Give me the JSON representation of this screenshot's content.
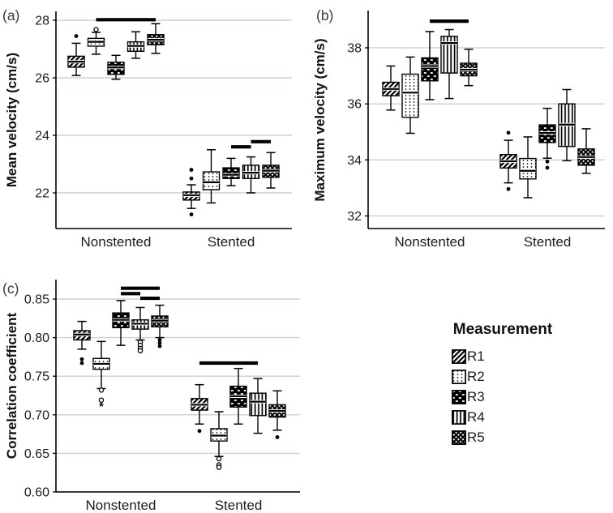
{
  "colors": {
    "gridline": "#c7d2d4",
    "axis": "#000000",
    "ink": "#000000",
    "background": "#ffffff",
    "significance_bar": "#000000"
  },
  "legend": {
    "title": "Measurement",
    "items": [
      {
        "label": "R1",
        "pattern": "diagonal-hatch"
      },
      {
        "label": "R2",
        "pattern": "dots"
      },
      {
        "label": "R3",
        "pattern": "dense-checker"
      },
      {
        "label": "R4",
        "pattern": "vertical-lines"
      },
      {
        "label": "R5",
        "pattern": "crosshatch"
      }
    ]
  },
  "chart_data": [
    {
      "id": "a",
      "type": "box",
      "panel_label": "(a)",
      "ylabel": "Mean velocity (cm/s)",
      "ylim": [
        20.76,
        28.31
      ],
      "yticks": [
        22,
        24,
        26,
        28
      ],
      "tick_decimals": 0,
      "grid": true,
      "categories": [
        "Nonstented",
        "Stented"
      ],
      "series": [
        "R1",
        "R2",
        "R3",
        "R4",
        "R5"
      ],
      "groups": [
        {
          "category": "Nonstented",
          "boxes": [
            {
              "series": "R1",
              "whisker_low": 26.08,
              "q1": 26.37,
              "median": 26.56,
              "q3": 26.75,
              "whisker_high": 27.2,
              "outliers": [
                {
                  "value": 27.45,
                  "marker": "dot"
                }
              ]
            },
            {
              "series": "R2",
              "whisker_low": 26.82,
              "q1": 27.1,
              "median": 27.25,
              "q3": 27.37,
              "whisker_high": 27.58,
              "outliers": [
                {
                  "value": 27.68,
                  "marker": "circle"
                }
              ]
            },
            {
              "series": "R3",
              "whisker_low": 25.95,
              "q1": 26.12,
              "median": 26.36,
              "q3": 26.54,
              "whisker_high": 26.78,
              "outliers": []
            },
            {
              "series": "R4",
              "whisker_low": 26.68,
              "q1": 26.92,
              "median": 27.11,
              "q3": 27.25,
              "whisker_high": 27.6,
              "outliers": []
            },
            {
              "series": "R5",
              "whisker_low": 26.85,
              "q1": 27.15,
              "median": 27.32,
              "q3": 27.5,
              "whisker_high": 27.88,
              "outliers": []
            }
          ]
        },
        {
          "category": "Stented",
          "boxes": [
            {
              "series": "R1",
              "whisker_low": 21.46,
              "q1": 21.75,
              "median": 21.92,
              "q3": 22.03,
              "whisker_high": 22.28,
              "outliers": [
                {
                  "value": 22.8,
                  "marker": "dot"
                },
                {
                  "value": 22.5,
                  "marker": "dot"
                },
                {
                  "value": 21.25,
                  "marker": "dot"
                }
              ]
            },
            {
              "series": "R2",
              "whisker_low": 21.65,
              "q1": 22.11,
              "median": 22.37,
              "q3": 22.73,
              "whisker_high": 23.5,
              "outliers": []
            },
            {
              "series": "R3",
              "whisker_low": 22.25,
              "q1": 22.5,
              "median": 22.63,
              "q3": 22.87,
              "whisker_high": 23.2,
              "outliers": []
            },
            {
              "series": "R4",
              "whisker_low": 22.0,
              "q1": 22.5,
              "median": 22.7,
              "q3": 22.96,
              "whisker_high": 23.25,
              "outliers": []
            },
            {
              "series": "R5",
              "whisker_low": 22.17,
              "q1": 22.54,
              "median": 22.77,
              "q3": 22.96,
              "whisker_high": 23.4,
              "outliers": []
            }
          ]
        }
      ],
      "significance_bars": [
        {
          "category": "Nonstented",
          "from_series": "R2",
          "to_series": "R5",
          "y": 28.02
        },
        {
          "category": "Stented",
          "from_series": "R3",
          "to_series": "R4",
          "y": 23.6
        },
        {
          "category": "Stented",
          "from_series": "R4",
          "to_series": "R5",
          "y": 23.78
        }
      ]
    },
    {
      "id": "b",
      "type": "box",
      "panel_label": "(b)",
      "ylabel": "Maximum velocity (cm/s)",
      "ylim": [
        31.55,
        39.33
      ],
      "yticks": [
        32,
        34,
        36,
        38
      ],
      "tick_decimals": 0,
      "grid": true,
      "categories": [
        "Nonstented",
        "Stented"
      ],
      "series": [
        "R1",
        "R2",
        "R3",
        "R4",
        "R5"
      ],
      "groups": [
        {
          "category": "Nonstented",
          "boxes": [
            {
              "series": "R1",
              "whisker_low": 35.78,
              "q1": 36.29,
              "median": 36.53,
              "q3": 36.77,
              "whisker_high": 37.35,
              "outliers": []
            },
            {
              "series": "R2",
              "whisker_low": 34.95,
              "q1": 35.52,
              "median": 36.4,
              "q3": 37.06,
              "whisker_high": 37.67,
              "outliers": []
            },
            {
              "series": "R3",
              "whisker_low": 36.15,
              "q1": 36.82,
              "median": 37.35,
              "q3": 37.64,
              "whisker_high": 38.58,
              "outliers": []
            },
            {
              "series": "R4",
              "whisker_low": 36.19,
              "q1": 37.1,
              "median": 38.17,
              "q3": 38.41,
              "whisker_high": 38.65,
              "outliers": []
            },
            {
              "series": "R5",
              "whisker_low": 36.65,
              "q1": 37.0,
              "median": 37.22,
              "q3": 37.45,
              "whisker_high": 37.95,
              "outliers": []
            }
          ]
        },
        {
          "category": "Stented",
          "boxes": [
            {
              "series": "R1",
              "whisker_low": 33.18,
              "q1": 33.71,
              "median": 33.95,
              "q3": 34.19,
              "whisker_high": 34.7,
              "outliers": [
                {
                  "value": 34.97,
                  "marker": "dot"
                },
                {
                  "value": 32.96,
                  "marker": "dot"
                }
              ]
            },
            {
              "series": "R2",
              "whisker_low": 32.65,
              "q1": 33.32,
              "median": 33.61,
              "q3": 34.05,
              "whisker_high": 34.82,
              "outliers": []
            },
            {
              "series": "R3",
              "whisker_low": 34.06,
              "q1": 34.62,
              "median": 34.96,
              "q3": 35.25,
              "whisker_high": 35.84,
              "outliers": [
                {
                  "value": 33.94,
                  "marker": "dot"
                },
                {
                  "value": 33.72,
                  "marker": "dot"
                }
              ]
            },
            {
              "series": "R4",
              "whisker_low": 33.97,
              "q1": 34.48,
              "median": 35.26,
              "q3": 36.0,
              "whisker_high": 36.51,
              "outliers": []
            },
            {
              "series": "R5",
              "whisker_low": 33.52,
              "q1": 33.81,
              "median": 34.1,
              "q3": 34.39,
              "whisker_high": 35.11,
              "outliers": []
            }
          ]
        }
      ],
      "significance_bars": [
        {
          "category": "Nonstented",
          "from_series": "R3",
          "to_series": "R5",
          "y": 38.95
        }
      ]
    },
    {
      "id": "c",
      "type": "box",
      "panel_label": "(c)",
      "ylabel": "Correlation coefficient",
      "ylim": [
        0.6,
        0.8752
      ],
      "yticks": [
        0.6,
        0.65,
        0.7,
        0.75,
        0.8,
        0.85
      ],
      "tick_decimals": 2,
      "grid": true,
      "categories": [
        "Nonstented",
        "Stented"
      ],
      "series": [
        "R1",
        "R2",
        "R3",
        "R4",
        "R5"
      ],
      "groups": [
        {
          "category": "Nonstented",
          "boxes": [
            {
              "series": "R1",
              "whisker_low": 0.785,
              "q1": 0.797,
              "median": 0.804,
              "q3": 0.809,
              "whisker_high": 0.821,
              "outliers": [
                {
                  "value": 0.772,
                  "marker": "dot"
                },
                {
                  "value": 0.767,
                  "marker": "dot"
                }
              ]
            },
            {
              "series": "R2",
              "whisker_low": 0.734,
              "q1": 0.759,
              "median": 0.766,
              "q3": 0.773,
              "whisker_high": 0.795,
              "outliers": [
                {
                  "value": 0.732,
                  "marker": "circle"
                },
                {
                  "value": 0.719,
                  "marker": "circle"
                },
                {
                  "value": 0.711,
                  "marker": "star"
                }
              ]
            },
            {
              "series": "R3",
              "whisker_low": 0.79,
              "q1": 0.813,
              "median": 0.823,
              "q3": 0.832,
              "whisker_high": 0.848,
              "outliers": []
            },
            {
              "series": "R4",
              "whisker_low": 0.797,
              "q1": 0.811,
              "median": 0.818,
              "q3": 0.823,
              "whisker_high": 0.839,
              "outliers": [
                {
                  "value": 0.794,
                  "marker": "circle"
                },
                {
                  "value": 0.79,
                  "marker": "circle"
                },
                {
                  "value": 0.786,
                  "marker": "circle"
                },
                {
                  "value": 0.783,
                  "marker": "circle"
                }
              ]
            },
            {
              "series": "R5",
              "whisker_low": 0.8,
              "q1": 0.814,
              "median": 0.822,
              "q3": 0.828,
              "whisker_high": 0.842,
              "outliers": [
                {
                  "value": 0.797,
                  "marker": "dot"
                },
                {
                  "value": 0.793,
                  "marker": "dot"
                },
                {
                  "value": 0.789,
                  "marker": "dot"
                }
              ]
            }
          ]
        },
        {
          "category": "Stented",
          "boxes": [
            {
              "series": "R1",
              "whisker_low": 0.688,
              "q1": 0.706,
              "median": 0.713,
              "q3": 0.721,
              "whisker_high": 0.739,
              "outliers": [
                {
                  "value": 0.679,
                  "marker": "dot"
                }
              ]
            },
            {
              "series": "R2",
              "whisker_low": 0.646,
              "q1": 0.666,
              "median": 0.673,
              "q3": 0.682,
              "whisker_high": 0.704,
              "outliers": [
                {
                  "value": 0.643,
                  "marker": "circle"
                },
                {
                  "value": 0.635,
                  "marker": "circle"
                },
                {
                  "value": 0.632,
                  "marker": "circle"
                }
              ]
            },
            {
              "series": "R3",
              "whisker_low": 0.688,
              "q1": 0.71,
              "median": 0.724,
              "q3": 0.737,
              "whisker_high": 0.76,
              "outliers": []
            },
            {
              "series": "R4",
              "whisker_low": 0.676,
              "q1": 0.699,
              "median": 0.717,
              "q3": 0.728,
              "whisker_high": 0.747,
              "outliers": []
            },
            {
              "series": "R5",
              "whisker_low": 0.68,
              "q1": 0.697,
              "median": 0.705,
              "q3": 0.713,
              "whisker_high": 0.731,
              "outliers": [
                {
                  "value": 0.671,
                  "marker": "dot"
                }
              ]
            }
          ]
        }
      ],
      "significance_bars": [
        {
          "category": "Nonstented",
          "from_series": "R3",
          "to_series": "R5",
          "y": 0.864
        },
        {
          "category": "Nonstented",
          "from_series": "R3",
          "to_series": "R4",
          "y": 0.857
        },
        {
          "category": "Nonstented",
          "from_series": "R4",
          "to_series": "R5",
          "y": 0.851
        },
        {
          "category": "Stented",
          "from_series": "R1",
          "to_series": "R4",
          "y": 0.767
        }
      ]
    }
  ]
}
